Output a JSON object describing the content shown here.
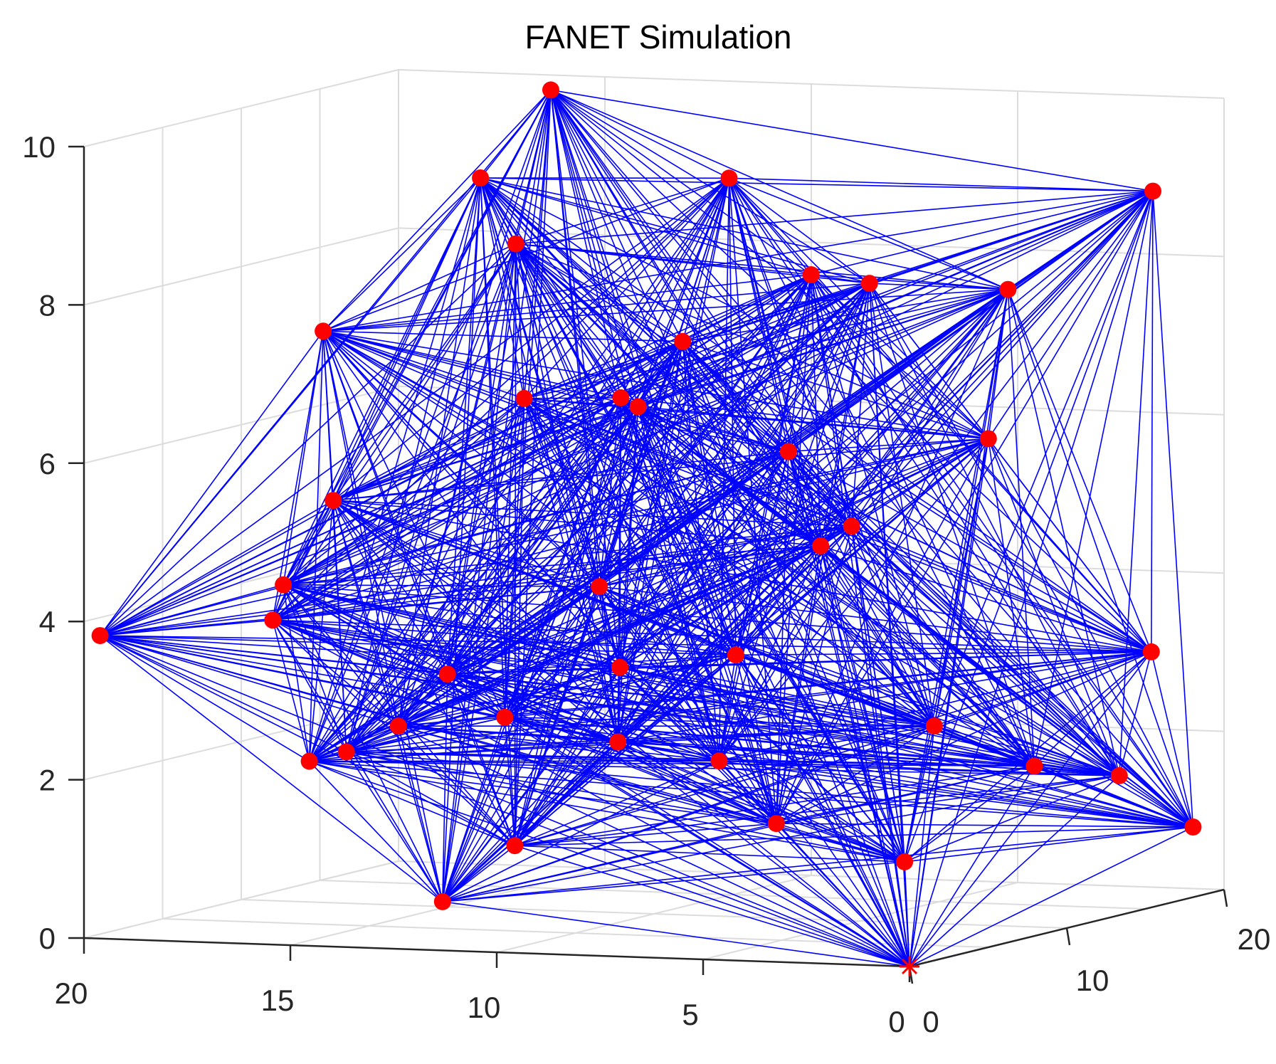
{
  "chart_data": {
    "type": "scatter3d",
    "title": "FANET Simulation",
    "xlim": [
      0,
      20
    ],
    "ylim": [
      0,
      20
    ],
    "zlim": [
      0,
      10
    ],
    "x_ticks": [
      0,
      5,
      10,
      15,
      20
    ],
    "x_tick_labels": [
      "0",
      "5",
      "10",
      "15",
      "20"
    ],
    "y_ticks": [
      0,
      10,
      20
    ],
    "y_tick_labels": [
      "0",
      "10",
      "20"
    ],
    "z_ticks": [
      0,
      2,
      4,
      6,
      8,
      10
    ],
    "z_tick_labels": [
      "0",
      "2",
      "4",
      "6",
      "8",
      "10"
    ],
    "grid": true,
    "node_color": "#ff0000",
    "link_color": "#0000ff",
    "base_station": {
      "x": 0,
      "y": 0,
      "z": 0,
      "marker": "asterisk"
    },
    "nodes": [
      {
        "x": 15.7,
        "y": 18.4,
        "z": 9.9
      },
      {
        "x": 12.3,
        "y": 5.0,
        "z": 9.5
      },
      {
        "x": 7.0,
        "y": 6.9,
        "z": 9.5
      },
      {
        "x": 1.0,
        "y": 18.1,
        "z": 8.9
      },
      {
        "x": 12.7,
        "y": 8.3,
        "z": 8.5
      },
      {
        "x": 6.5,
        "y": 10.8,
        "z": 8.1
      },
      {
        "x": 14.7,
        "y": 1.3,
        "z": 7.7
      },
      {
        "x": 10.3,
        "y": 12.6,
        "z": 7.1
      },
      {
        "x": 8.8,
        "y": 15.4,
        "z": 5.6
      },
      {
        "x": 15.6,
        "y": 4.3,
        "z": 5.4
      },
      {
        "x": 5.1,
        "y": 9.7,
        "z": 5.0
      },
      {
        "x": 0.2,
        "y": 15.9,
        "z": 3.2
      },
      {
        "x": 10.3,
        "y": 1.3,
        "z": 2.9
      },
      {
        "x": 1.8,
        "y": 6.3,
        "z": 2.7
      },
      {
        "x": 14.1,
        "y": 1.2,
        "z": 2.4
      },
      {
        "x": 2.5,
        "y": 19.9,
        "z": 1.4
      },
      {
        "x": 18.2,
        "y": 9.6,
        "z": 1.8
      },
      {
        "x": 7.0,
        "y": 9.9,
        "z": 1.2
      },
      {
        "x": 12.0,
        "y": 6.4,
        "z": 1.0
      },
      {
        "x": 19.8,
        "y": 0.5,
        "z": 3.8
      },
      {
        "x": 16.8,
        "y": 3.6,
        "z": 3.9
      },
      {
        "x": 12.2,
        "y": 13.6,
        "z": 2.9
      },
      {
        "x": 9.7,
        "y": 8.2,
        "z": 6.5
      },
      {
        "x": 17.3,
        "y": 12.9,
        "z": 2.1
      },
      {
        "x": 0.6,
        "y": 19.6,
        "z": 0.8
      },
      {
        "x": 16.2,
        "y": 2.7,
        "z": 4.4
      },
      {
        "x": 3.7,
        "y": 9.4,
        "z": 0.8
      },
      {
        "x": 12.8,
        "y": 3.9,
        "z": 0.4
      },
      {
        "x": 5.2,
        "y": 11.1,
        "z": 8.0
      },
      {
        "x": 3.1,
        "y": 14.4,
        "z": 7.8
      },
      {
        "x": 6.8,
        "y": 12.2,
        "z": 4.6
      },
      {
        "x": 13.9,
        "y": 7.1,
        "z": 3.1
      },
      {
        "x": 9.2,
        "y": 5.6,
        "z": 2.4
      },
      {
        "x": 4.3,
        "y": 16.3,
        "z": 5.8
      },
      {
        "x": 1.7,
        "y": 12.4,
        "z": 1.9
      },
      {
        "x": 11.4,
        "y": 10.2,
        "z": 4.1
      },
      {
        "x": 8.1,
        "y": 2.9,
        "z": 6.9
      },
      {
        "x": 14.9,
        "y": 14.6,
        "z": 6.2
      },
      {
        "x": 6.0,
        "y": 4.7,
        "z": 3.6
      },
      {
        "x": 10.9,
        "y": 16.5,
        "z": 1.6
      }
    ]
  }
}
